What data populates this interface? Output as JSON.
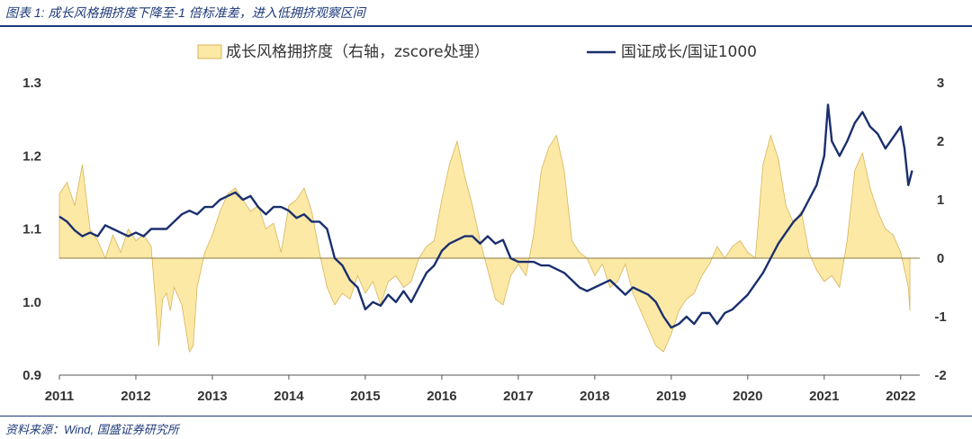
{
  "header": {
    "title": "图表 1:  成长风格拥挤度下降至-1 倍标准差，进入低拥挤观察区间"
  },
  "footer": {
    "source": "资料来源：Wind, 国盛证券研究所"
  },
  "colors": {
    "area_fill": "#fde9a6",
    "area_stroke": "#d6b45a",
    "line": "#1a2f6e",
    "accent": "#1f3a7a"
  },
  "chart_data": {
    "type": "area+line",
    "x_tick_labels": [
      "2011",
      "2012",
      "2013",
      "2014",
      "2015",
      "2016",
      "2017",
      "2018",
      "2019",
      "2020",
      "2021",
      "2022"
    ],
    "x_range": [
      2011.0,
      2022.25
    ],
    "left_axis": {
      "range": [
        0.9,
        1.3
      ],
      "tick_labels": [
        "0.9",
        "1.0",
        "1.1",
        "1.2",
        "1.3"
      ]
    },
    "right_axis": {
      "range": [
        -2,
        3
      ],
      "tick_labels": [
        "-2",
        "-1",
        "0",
        "1",
        "2",
        "3"
      ]
    },
    "legend_position": "top",
    "grid": false,
    "series": [
      {
        "name": "成长风格拥挤度（右轴，zscore处理）",
        "type": "area",
        "axis": "right",
        "x": [
          2011.0,
          2011.1,
          2011.2,
          2011.3,
          2011.4,
          2011.5,
          2011.6,
          2011.7,
          2011.8,
          2011.9,
          2012.0,
          2012.1,
          2012.2,
          2012.3,
          2012.35,
          2012.4,
          2012.45,
          2012.5,
          2012.6,
          2012.7,
          2012.75,
          2012.8,
          2012.9,
          2013.0,
          2013.1,
          2013.2,
          2013.3,
          2013.4,
          2013.5,
          2013.6,
          2013.7,
          2013.8,
          2013.9,
          2014.0,
          2014.1,
          2014.2,
          2014.3,
          2014.4,
          2014.5,
          2014.6,
          2014.7,
          2014.8,
          2014.9,
          2015.0,
          2015.1,
          2015.2,
          2015.3,
          2015.4,
          2015.5,
          2015.6,
          2015.7,
          2015.8,
          2015.9,
          2016.0,
          2016.1,
          2016.2,
          2016.3,
          2016.4,
          2016.5,
          2016.6,
          2016.7,
          2016.8,
          2016.9,
          2017.0,
          2017.1,
          2017.2,
          2017.3,
          2017.4,
          2017.5,
          2017.6,
          2017.7,
          2017.8,
          2017.9,
          2018.0,
          2018.1,
          2018.2,
          2018.3,
          2018.4,
          2018.5,
          2018.6,
          2018.7,
          2018.8,
          2018.9,
          2019.0,
          2019.1,
          2019.2,
          2019.3,
          2019.4,
          2019.5,
          2019.6,
          2019.7,
          2019.8,
          2019.9,
          2020.0,
          2020.1,
          2020.2,
          2020.3,
          2020.4,
          2020.5,
          2020.6,
          2020.7,
          2020.8,
          2020.9,
          2021.0,
          2021.1,
          2021.2,
          2021.3,
          2021.4,
          2021.5,
          2021.6,
          2021.7,
          2021.8,
          2021.9,
          2022.0,
          2022.1,
          2022.12
        ],
        "values": [
          1.1,
          1.3,
          0.9,
          1.6,
          0.5,
          0.3,
          0.0,
          0.4,
          0.1,
          0.5,
          0.3,
          0.4,
          0.2,
          -1.5,
          -0.7,
          -0.6,
          -0.9,
          -0.5,
          -0.8,
          -1.6,
          -1.5,
          -0.5,
          0.1,
          0.4,
          0.8,
          1.1,
          1.2,
          1.0,
          0.8,
          0.9,
          0.5,
          0.6,
          0.1,
          0.9,
          1.0,
          1.2,
          0.8,
          0.1,
          -0.5,
          -0.8,
          -0.6,
          -0.7,
          -0.3,
          -0.6,
          -0.4,
          -0.8,
          -0.4,
          -0.3,
          -0.5,
          -0.4,
          0.0,
          0.2,
          0.3,
          1.0,
          1.6,
          2.0,
          1.4,
          0.9,
          0.3,
          -0.2,
          -0.7,
          -0.8,
          -0.3,
          -0.1,
          -0.3,
          0.4,
          1.5,
          1.9,
          2.1,
          1.5,
          0.3,
          0.1,
          0.0,
          -0.3,
          -0.1,
          -0.5,
          -0.4,
          -0.1,
          -0.6,
          -0.9,
          -1.2,
          -1.5,
          -1.6,
          -1.3,
          -0.9,
          -0.7,
          -0.6,
          -0.3,
          -0.1,
          0.2,
          0.0,
          0.2,
          0.3,
          0.1,
          0.0,
          1.6,
          2.1,
          1.7,
          0.9,
          0.6,
          0.8,
          0.1,
          -0.2,
          -0.4,
          -0.3,
          -0.5,
          0.3,
          1.5,
          1.8,
          1.2,
          0.8,
          0.5,
          0.4,
          0.1,
          -0.5,
          -0.9
        ]
      },
      {
        "name": "国证成长/国证1000",
        "type": "line",
        "axis": "left",
        "x": [
          2011.0,
          2011.1,
          2011.2,
          2011.3,
          2011.4,
          2011.5,
          2011.6,
          2011.7,
          2011.8,
          2011.9,
          2012.0,
          2012.1,
          2012.2,
          2012.3,
          2012.4,
          2012.5,
          2012.6,
          2012.7,
          2012.8,
          2012.9,
          2013.0,
          2013.1,
          2013.2,
          2013.3,
          2013.4,
          2013.5,
          2013.6,
          2013.7,
          2013.8,
          2013.9,
          2014.0,
          2014.1,
          2014.2,
          2014.3,
          2014.4,
          2014.5,
          2014.6,
          2014.7,
          2014.8,
          2014.9,
          2015.0,
          2015.1,
          2015.2,
          2015.3,
          2015.4,
          2015.5,
          2015.6,
          2015.7,
          2015.8,
          2015.9,
          2016.0,
          2016.1,
          2016.2,
          2016.3,
          2016.4,
          2016.5,
          2016.6,
          2016.7,
          2016.8,
          2016.9,
          2017.0,
          2017.1,
          2017.2,
          2017.3,
          2017.4,
          2017.5,
          2017.6,
          2017.7,
          2017.8,
          2017.9,
          2018.0,
          2018.1,
          2018.2,
          2018.3,
          2018.4,
          2018.5,
          2018.6,
          2018.7,
          2018.8,
          2018.9,
          2019.0,
          2019.1,
          2019.2,
          2019.3,
          2019.4,
          2019.5,
          2019.6,
          2019.7,
          2019.8,
          2019.9,
          2020.0,
          2020.1,
          2020.2,
          2020.3,
          2020.4,
          2020.5,
          2020.6,
          2020.7,
          2020.8,
          2020.9,
          2021.0,
          2021.05,
          2021.1,
          2021.2,
          2021.3,
          2021.4,
          2021.5,
          2021.6,
          2021.7,
          2021.8,
          2021.9,
          2022.0,
          2022.05,
          2022.1,
          2022.15
        ],
        "values": [
          1.117,
          1.11,
          1.098,
          1.09,
          1.095,
          1.09,
          1.105,
          1.1,
          1.095,
          1.09,
          1.095,
          1.09,
          1.1,
          1.1,
          1.1,
          1.11,
          1.12,
          1.125,
          1.12,
          1.13,
          1.13,
          1.14,
          1.145,
          1.15,
          1.14,
          1.145,
          1.13,
          1.12,
          1.13,
          1.13,
          1.125,
          1.115,
          1.12,
          1.11,
          1.11,
          1.1,
          1.06,
          1.05,
          1.03,
          1.02,
          0.99,
          1.0,
          0.995,
          1.01,
          1.0,
          1.015,
          1.0,
          1.02,
          1.04,
          1.05,
          1.07,
          1.08,
          1.085,
          1.09,
          1.09,
          1.08,
          1.09,
          1.08,
          1.085,
          1.06,
          1.055,
          1.055,
          1.055,
          1.05,
          1.05,
          1.045,
          1.04,
          1.03,
          1.02,
          1.015,
          1.02,
          1.025,
          1.03,
          1.02,
          1.01,
          1.02,
          1.015,
          1.01,
          1.0,
          0.98,
          0.965,
          0.97,
          0.98,
          0.97,
          0.985,
          0.985,
          0.97,
          0.985,
          0.99,
          1.0,
          1.01,
          1.025,
          1.04,
          1.06,
          1.08,
          1.095,
          1.11,
          1.12,
          1.14,
          1.16,
          1.2,
          1.27,
          1.22,
          1.2,
          1.22,
          1.245,
          1.26,
          1.24,
          1.23,
          1.21,
          1.225,
          1.24,
          1.21,
          1.16,
          1.18
        ]
      }
    ]
  }
}
